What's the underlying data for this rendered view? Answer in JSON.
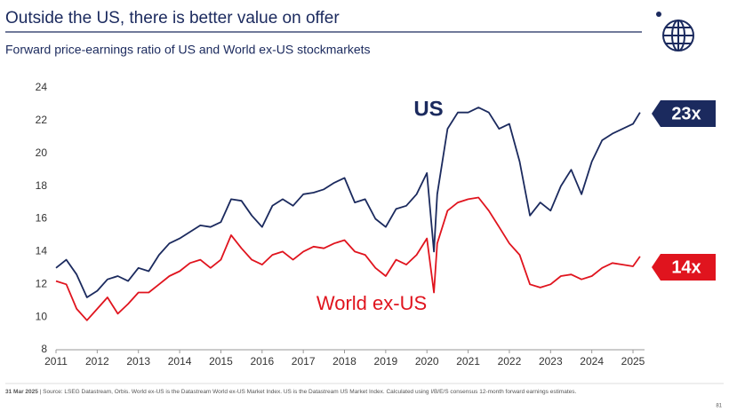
{
  "chart_data": {
    "type": "line",
    "title": "Outside the US, there is better value on offer",
    "subtitle": "Forward price-earnings ratio of US and World ex-US stockmarkets",
    "x": [
      2011.0,
      2011.25,
      2011.5,
      2011.75,
      2012.0,
      2012.25,
      2012.5,
      2012.75,
      2013.0,
      2013.25,
      2013.5,
      2013.75,
      2014.0,
      2014.25,
      2014.5,
      2014.75,
      2015.0,
      2015.25,
      2015.5,
      2015.75,
      2016.0,
      2016.25,
      2016.5,
      2016.75,
      2017.0,
      2017.25,
      2017.5,
      2017.75,
      2018.0,
      2018.25,
      2018.5,
      2018.75,
      2019.0,
      2019.25,
      2019.5,
      2019.75,
      2020.0,
      2020.17,
      2020.25,
      2020.5,
      2020.75,
      2021.0,
      2021.25,
      2021.5,
      2021.75,
      2022.0,
      2022.25,
      2022.5,
      2022.75,
      2023.0,
      2023.25,
      2023.5,
      2023.75,
      2024.0,
      2024.25,
      2024.5,
      2024.75,
      2025.0,
      2025.17
    ],
    "series": [
      {
        "name": "US",
        "color": "#1b2a5e",
        "values": [
          13.0,
          13.5,
          12.6,
          11.2,
          11.6,
          12.3,
          12.5,
          12.2,
          13.0,
          12.8,
          13.8,
          14.5,
          14.8,
          15.2,
          15.6,
          15.5,
          15.8,
          17.2,
          17.1,
          16.2,
          15.5,
          16.8,
          17.2,
          16.8,
          17.5,
          17.6,
          17.8,
          18.2,
          18.5,
          17.0,
          17.2,
          16.0,
          15.5,
          16.6,
          16.8,
          17.5,
          18.8,
          14.0,
          17.5,
          21.5,
          22.5,
          22.5,
          22.8,
          22.5,
          21.5,
          21.8,
          19.5,
          16.2,
          17.0,
          16.5,
          18.0,
          19.0,
          17.5,
          19.5,
          20.8,
          21.2,
          21.5,
          21.8,
          22.5
        ]
      },
      {
        "name": "World ex-US",
        "color": "#e0141e",
        "values": [
          12.2,
          12.0,
          10.5,
          9.8,
          10.5,
          11.2,
          10.2,
          10.8,
          11.5,
          11.5,
          12.0,
          12.5,
          12.8,
          13.3,
          13.5,
          13.0,
          13.5,
          15.0,
          14.2,
          13.5,
          13.2,
          13.8,
          14.0,
          13.5,
          14.0,
          14.3,
          14.2,
          14.5,
          14.7,
          14.0,
          13.8,
          13.0,
          12.5,
          13.5,
          13.2,
          13.8,
          14.8,
          11.5,
          14.5,
          16.5,
          17.0,
          17.2,
          17.3,
          16.5,
          15.5,
          14.5,
          13.8,
          12.0,
          11.8,
          12.0,
          12.5,
          12.6,
          12.3,
          12.5,
          13.0,
          13.3,
          13.2,
          13.1,
          13.7
        ]
      }
    ],
    "xlim": [
      2011,
      2025.28
    ],
    "xticks": [
      2011,
      2012,
      2013,
      2014,
      2015,
      2016,
      2017,
      2018,
      2019,
      2020,
      2021,
      2022,
      2023,
      2024,
      2025
    ],
    "ylim": [
      8,
      24
    ],
    "yticks": [
      8,
      10,
      12,
      14,
      16,
      18,
      20,
      22,
      24
    ],
    "annotations": [
      "23x",
      "14x"
    ],
    "footnote": {
      "date": "31 Mar 2025",
      "source": "| Source: LSEG Datastream, Orbis. World ex-US is the Datastream World ex-US Market Index. US is the Datastream US Market Index. Calculated using I/B/E/S consensus 12-month forward earnings estimates."
    },
    "page_number": "81"
  }
}
